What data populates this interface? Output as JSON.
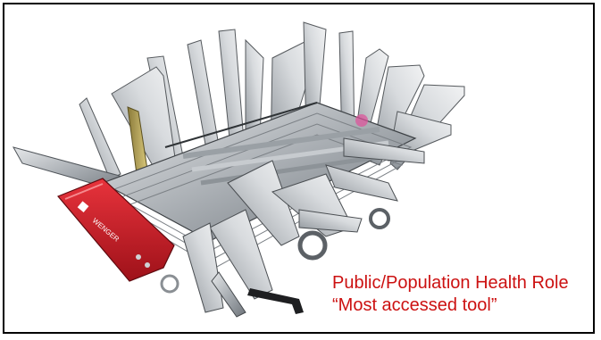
{
  "slide": {
    "caption_line1": "Public/Population Health Role",
    "caption_line2": "“Most accessed tool”",
    "caption_color": "#cc1111",
    "image": {
      "subject": "giant swiss army knife",
      "brand_text": "WENGER",
      "handle_color": "#d01f2a",
      "metal_color": "#b8bcc0"
    }
  }
}
